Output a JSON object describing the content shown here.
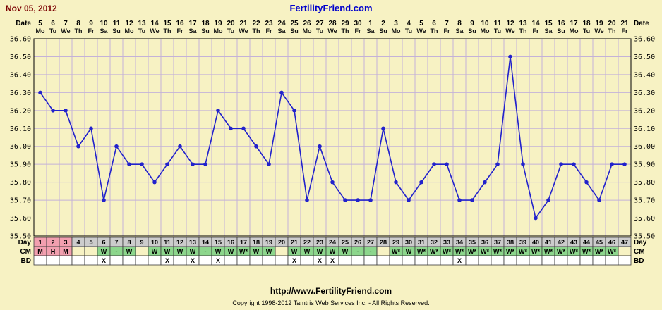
{
  "header": {
    "date": "Nov 05, 2012",
    "site": "FertilityFriend.com"
  },
  "axis": {
    "date_label": "Date",
    "day_label": "Day",
    "cm_label": "CM",
    "bd_label": "BD",
    "temp_ticks": [
      "36.60",
      "36.50",
      "36.40",
      "36.30",
      "36.20",
      "36.10",
      "36.00",
      "35.90",
      "35.80",
      "35.70",
      "35.60",
      "35.50"
    ]
  },
  "chart_data": {
    "type": "line",
    "title": "Basal body temperature cycle chart",
    "ylim": [
      35.5,
      36.6
    ],
    "y_step": 0.1,
    "legend_position": "none",
    "grid": true,
    "dates": [
      5,
      6,
      7,
      8,
      9,
      10,
      11,
      12,
      13,
      14,
      15,
      16,
      17,
      18,
      19,
      20,
      21,
      22,
      23,
      24,
      25,
      26,
      27,
      28,
      29,
      30,
      1,
      2,
      3,
      4,
      5,
      6,
      7,
      8,
      9,
      10,
      11,
      12,
      13,
      14,
      15,
      16,
      17,
      18,
      19,
      20,
      21
    ],
    "weekdays": [
      "Mo",
      "Tu",
      "We",
      "Th",
      "Fr",
      "Sa",
      "Su",
      "Mo",
      "Tu",
      "We",
      "Th",
      "Fr",
      "Sa",
      "Su",
      "Mo",
      "Tu",
      "We",
      "Th",
      "Fr",
      "Sa",
      "Su",
      "Mo",
      "Tu",
      "We",
      "Th",
      "Fr",
      "Sa",
      "Su",
      "Mo",
      "Tu",
      "We",
      "Th",
      "Fr",
      "Sa",
      "Su",
      "Mo",
      "Tu",
      "We",
      "Th",
      "Fr",
      "Sa",
      "Su",
      "Mo",
      "Tu",
      "We",
      "Th",
      "Fr"
    ],
    "cycle_days": [
      1,
      2,
      3,
      4,
      5,
      6,
      7,
      8,
      9,
      10,
      11,
      12,
      13,
      14,
      15,
      16,
      17,
      18,
      19,
      20,
      21,
      22,
      23,
      24,
      25,
      26,
      27,
      28,
      29,
      30,
      31,
      32,
      33,
      34,
      35,
      36,
      37,
      38,
      39,
      40,
      41,
      42,
      43,
      44,
      45,
      46,
      47
    ],
    "temps": [
      36.3,
      36.2,
      36.2,
      36.0,
      36.1,
      35.7,
      36.0,
      35.9,
      35.9,
      35.8,
      35.9,
      36.0,
      35.9,
      35.9,
      36.2,
      36.1,
      36.1,
      36.0,
      35.9,
      36.3,
      36.2,
      35.7,
      36.0,
      35.8,
      35.7,
      35.7,
      35.7,
      36.1,
      35.8,
      35.7,
      35.8,
      35.9,
      35.9,
      35.7,
      35.7,
      35.8,
      35.9,
      36.5,
      35.9,
      35.6,
      35.7,
      35.9,
      35.9,
      35.8,
      35.7,
      35.9,
      35.9
    ],
    "cm": [
      "M",
      "H",
      "M",
      "",
      "",
      "W",
      "-",
      "W",
      "",
      "W",
      "W",
      "W",
      "W",
      "-",
      "W",
      "W",
      "W*",
      "W",
      "W",
      "",
      "W",
      "W",
      "W",
      "W",
      "W",
      "-",
      "-",
      "",
      "W*",
      "W",
      "W*",
      "W*",
      "W*",
      "W*",
      "W*",
      "W*",
      "W*",
      "W*",
      "W*",
      "W*",
      "W*",
      "W*",
      "W*",
      "W*",
      "W*",
      "W*",
      ""
    ],
    "bd": [
      "",
      "",
      "",
      "",
      "",
      "X",
      "",
      "",
      "",
      "",
      "X",
      "",
      "X",
      "",
      "X",
      "",
      "",
      "",
      "",
      "",
      "X",
      "",
      "X",
      "X",
      "",
      "",
      "",
      "",
      "",
      "",
      "",
      "",
      "",
      "X",
      "",
      "",
      "",
      "",
      "",
      "",
      "",
      "",
      "",
      "",
      "",
      "",
      ""
    ],
    "menses_days": [
      1,
      2,
      3
    ]
  },
  "footer": {
    "url": "http://www.FertilityFriend.com",
    "copyright": "Copyright 1998-2012 Tamtris Web Services Inc. - All Rights Reserved."
  },
  "colors": {
    "background": "#f7f2c3",
    "grid": "#c4b2d8",
    "line": "#2222cc",
    "menses": "#f29faf",
    "cm_green": "#8cd68c",
    "day_grey": "#cccccc",
    "bd_white": "#ffffff",
    "title_red": "#7b0000",
    "link_blue": "#0000cc",
    "cell_border": "#3a3a3a"
  }
}
